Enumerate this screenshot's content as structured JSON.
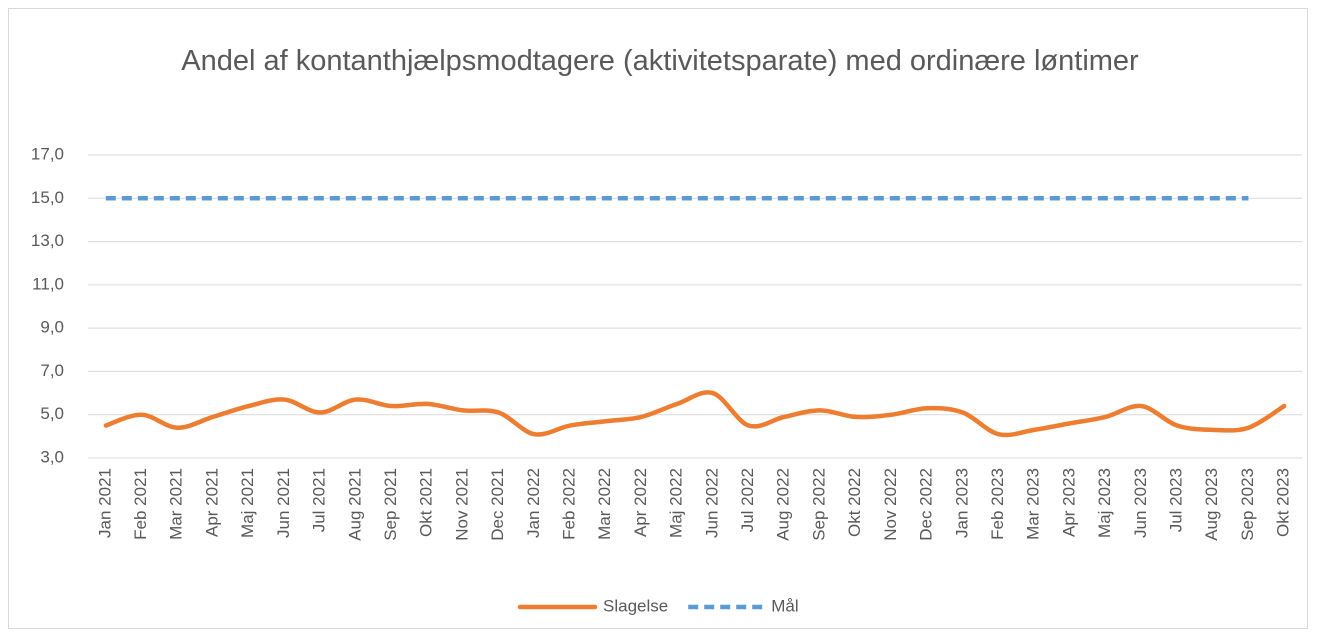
{
  "chart_data": {
    "type": "line",
    "title": "Andel af kontanthjælpsmodtagere (aktivitetsparate) med ordinære løntimer",
    "categories": [
      "Jan 2021",
      "Feb 2021",
      "Mar 2021",
      "Apr 2021",
      "Maj 2021",
      "Jun 2021",
      "Jul 2021",
      "Aug 2021",
      "Sep 2021",
      "Okt 2021",
      "Nov 2021",
      "Dec 2021",
      "Jan 2022",
      "Feb 2022",
      "Mar 2022",
      "Apr 2022",
      "Maj 2022",
      "Jun 2022",
      "Jul 2022",
      "Aug 2022",
      "Sep 2022",
      "Okt 2022",
      "Nov 2022",
      "Dec 2022",
      "Jan 2023",
      "Feb 2023",
      "Mar 2023",
      "Apr 2023",
      "Maj 2023",
      "Jun 2023",
      "Jul 2023",
      "Aug 2023",
      "Sep 2023",
      "Okt 2023"
    ],
    "series": [
      {
        "name": "Slagelse",
        "color": "#ed7d31",
        "dashed": false,
        "values": [
          4.5,
          5.0,
          4.4,
          4.9,
          5.4,
          5.7,
          5.1,
          5.7,
          5.4,
          5.5,
          5.2,
          5.1,
          4.1,
          4.5,
          4.7,
          4.9,
          5.5,
          6.0,
          4.5,
          4.9,
          5.2,
          4.9,
          5.0,
          5.3,
          5.1,
          4.1,
          4.3,
          4.6,
          4.9,
          5.4,
          4.5,
          4.3,
          4.4,
          5.4
        ]
      },
      {
        "name": "Mål",
        "color": "#5b9bd5",
        "dashed": true,
        "values": [
          15,
          15,
          15,
          15,
          15,
          15,
          15,
          15,
          15,
          15,
          15,
          15,
          15,
          15,
          15,
          15,
          15,
          15,
          15,
          15,
          15,
          15,
          15,
          15,
          15,
          15,
          15,
          15,
          15,
          15,
          15,
          15,
          15,
          null
        ]
      }
    ],
    "ylim": [
      3,
      17
    ],
    "yticks": [
      {
        "value": 3,
        "label": "3,0"
      },
      {
        "value": 5,
        "label": "5,0"
      },
      {
        "value": 7,
        "label": "7,0"
      },
      {
        "value": 9,
        "label": "9,0"
      },
      {
        "value": 11,
        "label": "11,0"
      },
      {
        "value": 13,
        "label": "13,0"
      },
      {
        "value": 15,
        "label": "15,0"
      },
      {
        "value": 17,
        "label": "17,0"
      }
    ],
    "grid": true,
    "legend": "bottom"
  }
}
